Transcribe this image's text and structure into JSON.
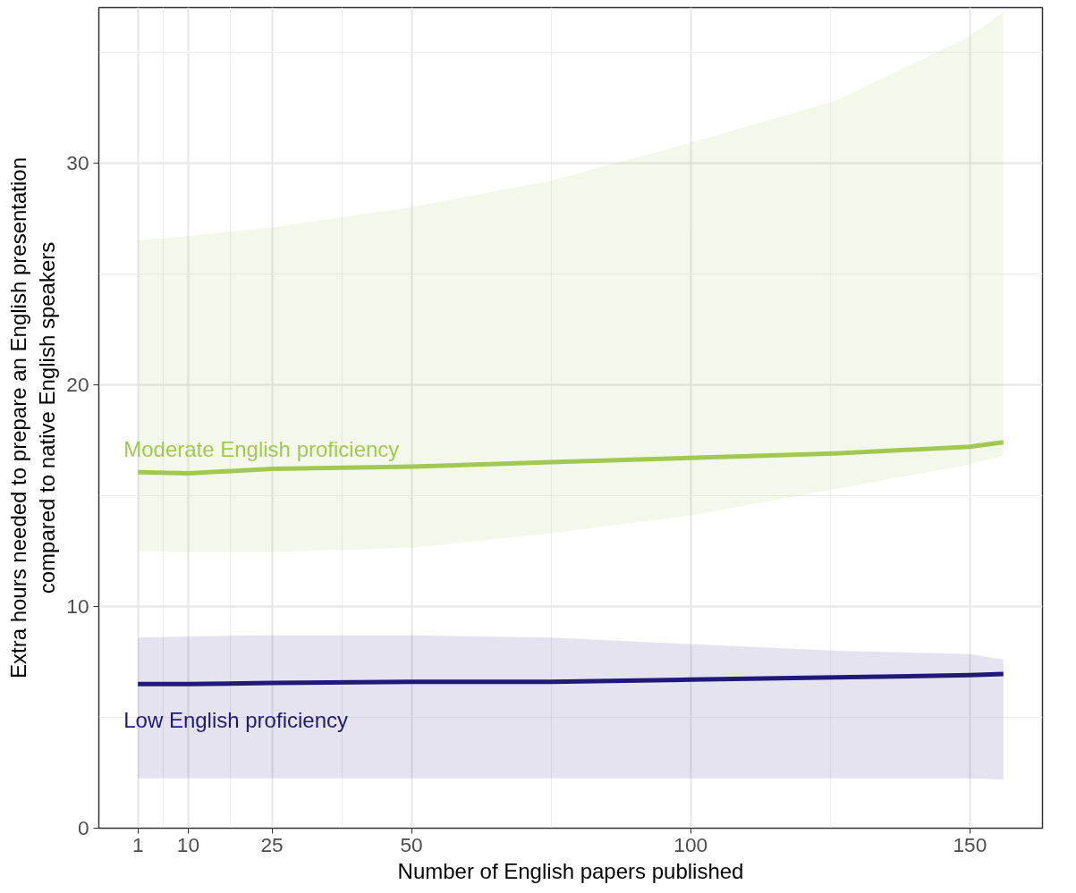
{
  "chart_data": {
    "type": "line",
    "xlabel": "Number of English papers published",
    "ylabel": "Extra hours needed to prepare an English presentation\ncompared to native English speakers",
    "x": [
      1,
      10,
      25,
      50,
      75,
      100,
      126,
      150,
      156
    ],
    "series": [
      {
        "name": "Moderate English proficiency",
        "color": "#a1c952",
        "values": [
          16.05,
          16.0,
          16.2,
          16.3,
          16.5,
          16.7,
          16.9,
          17.2,
          17.4
        ],
        "lower": [
          12.5,
          12.45,
          12.45,
          12.65,
          13.3,
          14.1,
          15.3,
          16.4,
          16.8
        ],
        "upper": [
          26.5,
          26.7,
          27.1,
          28.0,
          29.2,
          30.9,
          32.8,
          35.7,
          36.8
        ]
      },
      {
        "name": "Low English proficiency",
        "color": "#1f1a7a",
        "values": [
          6.5,
          6.5,
          6.55,
          6.6,
          6.6,
          6.7,
          6.8,
          6.9,
          6.95
        ],
        "lower": [
          2.25,
          2.25,
          2.25,
          2.25,
          2.25,
          2.25,
          2.25,
          2.25,
          2.2
        ],
        "upper": [
          8.6,
          8.65,
          8.7,
          8.7,
          8.6,
          8.3,
          8.0,
          7.85,
          7.6
        ]
      }
    ],
    "xlim": [
      -6,
      163
    ],
    "ylim": [
      0,
      37
    ],
    "xticks": [
      1,
      10,
      25,
      50,
      100,
      150
    ],
    "yticks": [
      0,
      10,
      20,
      30
    ],
    "grid": true,
    "legend": false
  }
}
